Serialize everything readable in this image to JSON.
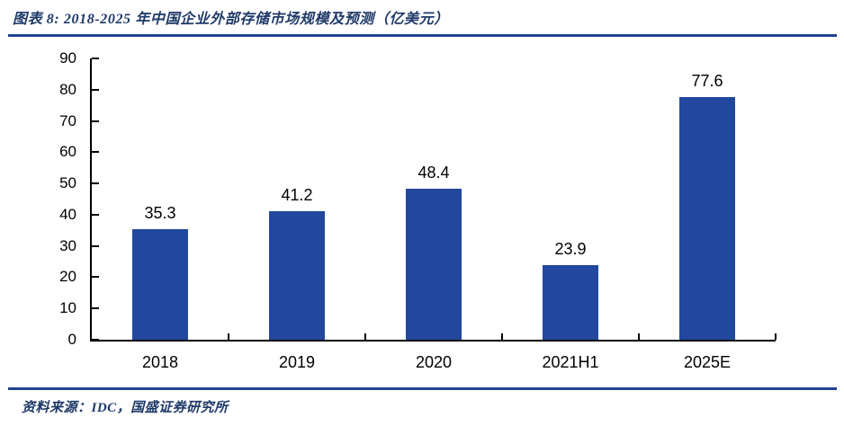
{
  "header": {
    "title": "图表 8: 2018-2025 年中国企业外部存储市场规模及预测（亿美元）"
  },
  "footer": {
    "source": "资料来源：IDC，国盛证券研究所"
  },
  "colors": {
    "bar": "#21489E",
    "title_text": "#1F3A68",
    "divider": "#23418F",
    "axis": "#000000",
    "label_text": "#000000"
  },
  "chart_data": {
    "type": "bar",
    "title": "2018-2025 年中国企业外部存储市场规模及预测（亿美元）",
    "categories": [
      "2018",
      "2019",
      "2020",
      "2021H1",
      "2025E"
    ],
    "values": [
      35.3,
      41.2,
      48.4,
      23.9,
      77.6
    ],
    "data_labels": [
      "35.3",
      "41.2",
      "48.4",
      "23.9",
      "77.6"
    ],
    "xlabel": "",
    "ylabel": "",
    "ylim": [
      0,
      90
    ],
    "yticks": [
      0,
      10,
      20,
      30,
      40,
      50,
      60,
      70,
      80,
      90
    ],
    "grid": false,
    "legend": "none",
    "bar_color": "#21489E",
    "tick_style": "inside"
  }
}
